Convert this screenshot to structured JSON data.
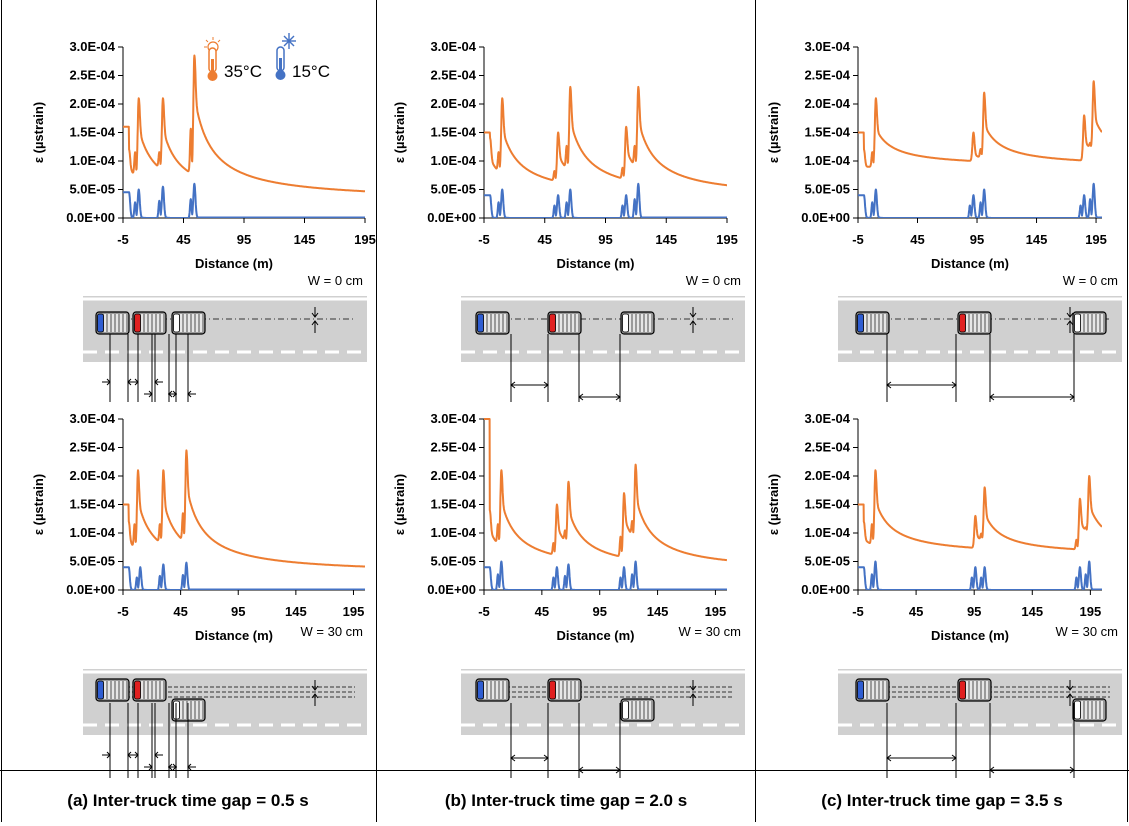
{
  "panels": [
    {
      "id": "a",
      "caption": "(a) Inter-truck time gap = 0.5 s"
    },
    {
      "id": "b",
      "caption": "(b) Inter-truck time gap = 2.0 s"
    },
    {
      "id": "c",
      "caption": "(c) Inter-truck time gap = 3.5 s"
    }
  ],
  "legend": [
    {
      "label": "35°C",
      "color": "#ED7D31",
      "icon": "hot-thermometer-icon"
    },
    {
      "label": "15°C",
      "color": "#4472C4",
      "icon": "cold-thermometer-icon"
    }
  ],
  "diagram_labels": {
    "w0": "W = 0 cm",
    "w30": "W = 30 cm"
  },
  "truck_colors": [
    "#2F5DD1",
    "#E02020",
    "#FFFFFF"
  ],
  "chart_data": [
    {
      "panel": "a",
      "wander": "W = 0 cm",
      "type": "line",
      "xlabel": "Distance (m)",
      "ylabel": "ε (µstrain)",
      "xticks": [
        "-5",
        "45",
        "95",
        "145",
        "195"
      ],
      "yticks": [
        "0.0E+00",
        "5.0E-05",
        "1.0E-04",
        "1.5E-04",
        "2.0E-04",
        "2.5E-04",
        "3.0E-04"
      ],
      "xlim": [
        -5,
        195
      ],
      "ylim": [
        0,
        0.0003
      ],
      "series": [
        {
          "name": "35°C",
          "color": "#ED7D31",
          "start": 0.00016,
          "peaks": [
            [
              0,
              0.00012
            ],
            [
              8,
              0.00021
            ],
            [
              28,
              0.00021
            ],
            [
              54,
              0.000285
            ]
          ],
          "tail": 3e-05
        },
        {
          "name": "15°C",
          "color": "#4472C4",
          "start": 4.5e-05,
          "peaks": [
            [
              0,
              4.5e-05
            ],
            [
              8,
              5e-05
            ],
            [
              28,
              5.5e-05
            ],
            [
              54,
              6e-05
            ]
          ],
          "tail": 0
        }
      ]
    },
    {
      "panel": "a",
      "wander": "W = 30 cm",
      "type": "line",
      "xlabel": "Distance (m)",
      "ylabel": "ε (µstrain)",
      "xticks": [
        "-5",
        "45",
        "95",
        "145",
        "195"
      ],
      "yticks": [
        "0.0E+00",
        "5.0E-05",
        "1.0E-04",
        "1.5E-04",
        "2.0E-04",
        "2.5E-04",
        "3.0E-04"
      ],
      "xlim": [
        -5,
        205
      ],
      "ylim": [
        0,
        0.0003
      ],
      "series": [
        {
          "name": "35°C",
          "color": "#ED7D31",
          "start": 0.00015,
          "peaks": [
            [
              0,
              0.00012
            ],
            [
              8,
              0.00021
            ],
            [
              30,
              0.00021
            ],
            [
              50,
              0.000245
            ]
          ],
          "tail": 2.8e-05
        },
        {
          "name": "15°C",
          "color": "#4472C4",
          "start": 4e-05,
          "peaks": [
            [
              0,
              4e-05
            ],
            [
              10,
              4e-05
            ],
            [
              30,
              4.5e-05
            ],
            [
              50,
              4.8e-05
            ]
          ],
          "tail": 0
        }
      ]
    },
    {
      "panel": "b",
      "wander": "W = 0 cm",
      "type": "line",
      "xlabel": "Distance (m)",
      "ylabel": "ε (µstrain)",
      "xticks": [
        "-5",
        "45",
        "95",
        "145",
        "195"
      ],
      "yticks": [
        "0.0E+00",
        "5.0E-05",
        "1.0E-04",
        "1.5E-04",
        "2.0E-04",
        "2.5E-04",
        "3.0E-04"
      ],
      "xlim": [
        -5,
        195
      ],
      "ylim": [
        0,
        0.0003
      ],
      "series": [
        {
          "name": "35°C",
          "color": "#ED7D31",
          "start": 0.00015,
          "peaks": [
            [
              0,
              0.00014
            ],
            [
              10,
              0.00021
            ],
            [
              56,
              0.00015
            ],
            [
              66,
              0.00023
            ],
            [
              112,
              0.00016
            ],
            [
              122,
              0.00023
            ]
          ],
          "tail": 3.5e-05
        },
        {
          "name": "15°C",
          "color": "#4472C4",
          "start": 4e-05,
          "peaks": [
            [
              0,
              4e-05
            ],
            [
              10,
              5e-05
            ],
            [
              56,
              4e-05
            ],
            [
              66,
              5e-05
            ],
            [
              112,
              4e-05
            ],
            [
              122,
              6e-05
            ]
          ],
          "tail": 0
        }
      ]
    },
    {
      "panel": "b",
      "wander": "W = 30 cm",
      "type": "line",
      "xlabel": "Distance (m)",
      "ylabel": "ε (µstrain)",
      "xticks": [
        "-5",
        "45",
        "95",
        "145",
        "195"
      ],
      "yticks": [
        "0.0E+00",
        "5.0E-05",
        "1.0E-04",
        "1.5E-04",
        "2.0E-04",
        "2.5E-04",
        "3.0E-04"
      ],
      "xlim": [
        -5,
        205
      ],
      "ylim": [
        0,
        0.0003
      ],
      "series": [
        {
          "name": "35°C",
          "color": "#ED7D31",
          "start": 0.0003,
          "peaks": [
            [
              0,
              0.00014
            ],
            [
              10,
              0.00021
            ],
            [
              58,
              0.00015
            ],
            [
              68,
              0.00019
            ],
            [
              116,
              0.00017
            ],
            [
              126,
              0.00022
            ]
          ],
          "tail": 3.2e-05
        },
        {
          "name": "15°C",
          "color": "#4472C4",
          "start": 4e-05,
          "peaks": [
            [
              0,
              4e-05
            ],
            [
              10,
              5e-05
            ],
            [
              58,
              4e-05
            ],
            [
              68,
              4.5e-05
            ],
            [
              116,
              4e-05
            ],
            [
              126,
              5e-05
            ]
          ],
          "tail": 0
        }
      ]
    },
    {
      "panel": "c",
      "wander": "W = 0 cm",
      "type": "line",
      "xlabel": "Distance (m)",
      "ylabel": "ε (µstrain)",
      "xticks": [
        "-5",
        "45",
        "95",
        "145",
        "195"
      ],
      "yticks": [
        "0.0E+00",
        "5.0E-05",
        "1.0E-04",
        "1.5E-04",
        "2.0E-04",
        "2.5E-04",
        "3.0E-04"
      ],
      "xlim": [
        -5,
        200
      ],
      "ylim": [
        0,
        0.0003
      ],
      "series": [
        {
          "name": "35°C",
          "color": "#ED7D31",
          "start": 0.00015,
          "peaks": [
            [
              0,
              0.00012
            ],
            [
              10,
              0.00021
            ],
            [
              92,
              0.00015
            ],
            [
              101,
              0.00022
            ],
            [
              185,
              0.00018
            ],
            [
              193,
              0.00024
            ]
          ],
          "tail": 9e-05
        },
        {
          "name": "15°C",
          "color": "#4472C4",
          "start": 4e-05,
          "peaks": [
            [
              0,
              4e-05
            ],
            [
              10,
              5e-05
            ],
            [
              92,
              4e-05
            ],
            [
              101,
              5e-05
            ],
            [
              185,
              4e-05
            ],
            [
              193,
              6e-05
            ]
          ],
          "tail": 0
        }
      ]
    },
    {
      "panel": "c",
      "wander": "W = 30 cm",
      "type": "line",
      "xlabel": "Distance (m)",
      "ylabel": "ε (µstrain)",
      "xticks": [
        "-5",
        "45",
        "95",
        "145",
        "195"
      ],
      "yticks": [
        "0.0E+00",
        "5.0E-05",
        "1.0E-04",
        "1.5E-04",
        "2.0E-04",
        "2.5E-04",
        "3.0E-04"
      ],
      "xlim": [
        -5,
        205
      ],
      "ylim": [
        0,
        0.0003
      ],
      "series": [
        {
          "name": "35°C",
          "color": "#ED7D31",
          "start": 0.00015,
          "peaks": [
            [
              0,
              0.00012
            ],
            [
              10,
              0.00021
            ],
            [
              96,
              0.00013
            ],
            [
              104,
              0.00018
            ],
            [
              186,
              0.00016
            ],
            [
              194,
              0.0002
            ]
          ],
          "tail": 6e-05
        },
        {
          "name": "15°C",
          "color": "#4472C4",
          "start": 4e-05,
          "peaks": [
            [
              0,
              4e-05
            ],
            [
              10,
              5e-05
            ],
            [
              96,
              4e-05
            ],
            [
              104,
              4e-05
            ],
            [
              186,
              4e-05
            ],
            [
              194,
              5e-05
            ]
          ],
          "tail": 0
        }
      ]
    }
  ]
}
